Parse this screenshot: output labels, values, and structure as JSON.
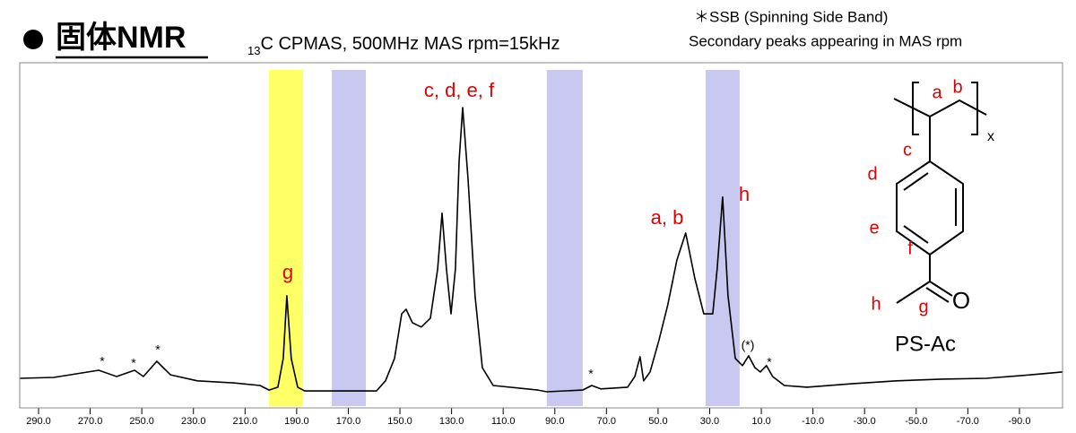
{
  "chart_data": {
    "type": "line",
    "title": "固体NMR",
    "subtitle": {
      "subscript": "13",
      "text": "C CPMAS, 500MHz   MAS rpm=15kHz"
    },
    "notes": [
      "＊SSB (Spinning Side Band)",
      "Secondary peaks appearing in MAS rpm"
    ],
    "x": [
      297.3,
      284.1,
      266.7,
      259.8,
      252.8,
      249.4,
      244.2,
      238.9,
      228.5,
      214.6,
      204.2,
      200.7,
      197.3,
      195.2,
      193.8,
      192.1,
      189.6,
      186.9,
      159.1,
      155.6,
      152.1,
      149.3,
      147.6,
      145.2,
      141.7,
      138.2,
      135.4,
      133.7,
      132.0,
      130.2,
      128.5,
      127.1,
      125.7,
      123.6,
      120.9,
      118.1,
      113.9,
      96.6,
      93.1,
      79.2,
      75.7,
      72.2,
      61.8,
      59.0,
      57.0,
      55.6,
      53.1,
      49.7,
      46.2,
      42.7,
      39.3,
      35.8,
      32.3,
      28.8,
      27.1,
      25.0,
      22.9,
      20.1,
      17.3,
      14.9,
      12.5,
      10.4,
      8.0,
      5.6,
      1.1,
      -7.6,
      -25.0,
      -42.4,
      -59.7,
      -77.1,
      -94.4,
      -106.6
    ],
    "series": [
      {
        "color": "#000000",
        "values": [
          5.3,
          5.6,
          8.1,
          5.9,
          8.1,
          5.9,
          11.2,
          6.5,
          4.4,
          3.7,
          2.8,
          1.2,
          2.2,
          12.2,
          34.0,
          12.2,
          2.2,
          0.9,
          0.9,
          4.4,
          12.2,
          27.7,
          29.3,
          24.6,
          23.1,
          26.2,
          43.3,
          62.7,
          43.3,
          27.7,
          43.3,
          80.7,
          99.4,
          74.5,
          34.0,
          9.0,
          2.8,
          1.2,
          0.6,
          1.2,
          2.8,
          1.6,
          2.2,
          5.9,
          12.8,
          4.4,
          7.5,
          18.4,
          30.9,
          46.4,
          55.8,
          40.2,
          27.7,
          27.7,
          43.3,
          68.3,
          34.0,
          12.2,
          9.7,
          13.1,
          9.0,
          7.5,
          9.7,
          5.9,
          2.8,
          2.2,
          3.4,
          4.4,
          5.0,
          5.3,
          6.5,
          7.5
        ]
      }
    ],
    "xlim": [
      297.3,
      -106.7
    ],
    "ylim": [
      -5,
      115
    ],
    "xticks": [
      {
        "value": 290,
        "label": "290.0"
      },
      {
        "value": 270,
        "label": "270.0"
      },
      {
        "value": 250,
        "label": "250.0"
      },
      {
        "value": 230,
        "label": "230.0"
      },
      {
        "value": 210,
        "label": "210.0"
      },
      {
        "value": 190,
        "label": "190.0"
      },
      {
        "value": 170,
        "label": "170.0"
      },
      {
        "value": 150,
        "label": "150.0"
      },
      {
        "value": 130,
        "label": "130.0"
      },
      {
        "value": 110,
        "label": "110.0"
      },
      {
        "value": 90,
        "label": "90.0"
      },
      {
        "value": 70,
        "label": "70.0"
      },
      {
        "value": 50,
        "label": "50.0"
      },
      {
        "value": 30,
        "label": "30.0"
      },
      {
        "value": 10,
        "label": "10.0"
      },
      {
        "value": -10,
        "label": "-10.0"
      },
      {
        "value": -30,
        "label": "-30.0"
      },
      {
        "value": -50,
        "label": "-50.0"
      },
      {
        "value": -70,
        "label": "-70.0"
      },
      {
        "value": -90,
        "label": "-90.0"
      }
    ],
    "bands": [
      {
        "from": 200.7,
        "to": 187.5,
        "color": "#ffff66"
      },
      {
        "from": 176.4,
        "to": 163.2,
        "color": "#c8c8f0"
      },
      {
        "from": 93.1,
        "to": 79.2,
        "color": "#c8c8f0"
      },
      {
        "from": 31.6,
        "to": 18.4,
        "color": "#c8c8f0"
      }
    ],
    "annotations": [
      "g",
      "c, d, e, f",
      "a, b",
      "h",
      "*",
      "*",
      "*",
      "*",
      "(*)",
      "*"
    ],
    "structure": {
      "labels": [
        "a",
        "b",
        "c",
        "d",
        "e",
        "f",
        "h",
        "g",
        "O",
        "x"
      ],
      "name": "PS-Ac"
    }
  }
}
